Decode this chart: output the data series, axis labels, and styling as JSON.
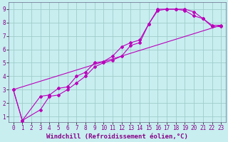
{
  "background_color": "#c8eef0",
  "grid_color": "#a0cccc",
  "line_color": "#bb00bb",
  "tick_color": "#880088",
  "xlabel": "Windchill (Refroidissement éolien,°C)",
  "xlim": [
    -0.5,
    23.5
  ],
  "ylim": [
    0.6,
    9.5
  ],
  "xtick_labels": [
    "0",
    "1",
    "2",
    "3",
    "4",
    "5",
    "6",
    "7",
    "8",
    "9",
    "10",
    "11",
    "12",
    "13",
    "14",
    "15",
    "16",
    "17",
    "18",
    "19",
    "20",
    "21",
    "22",
    "23"
  ],
  "xtick_vals": [
    0,
    1,
    2,
    3,
    4,
    5,
    6,
    7,
    8,
    9,
    10,
    11,
    12,
    13,
    14,
    15,
    16,
    17,
    18,
    19,
    20,
    21,
    22,
    23
  ],
  "yticks": [
    1,
    2,
    3,
    4,
    5,
    6,
    7,
    8,
    9
  ],
  "line1_x": [
    0,
    1,
    3,
    4,
    5,
    6,
    7,
    8,
    9,
    10,
    11,
    12,
    13,
    14,
    15,
    16,
    17,
    18,
    19,
    20,
    21,
    22,
    23
  ],
  "line1_y": [
    3.0,
    0.7,
    1.5,
    2.5,
    2.6,
    3.0,
    3.5,
    4.0,
    4.7,
    5.0,
    5.2,
    5.5,
    6.3,
    6.5,
    7.9,
    8.9,
    9.0,
    9.0,
    8.9,
    8.5,
    8.3,
    7.7,
    7.7
  ],
  "line2_x": [
    0,
    1,
    3,
    4,
    5,
    6,
    7,
    8,
    9,
    10,
    11,
    12,
    13,
    14,
    15,
    16,
    17,
    18,
    19,
    20,
    21,
    22,
    23
  ],
  "line2_y": [
    3.0,
    0.7,
    2.5,
    2.6,
    3.1,
    3.2,
    4.0,
    4.3,
    5.0,
    5.1,
    5.5,
    6.2,
    6.5,
    6.7,
    7.9,
    9.0,
    9.0,
    9.0,
    9.0,
    8.8,
    8.3,
    7.8,
    7.8
  ],
  "line3_x": [
    0,
    23
  ],
  "line3_y": [
    3.0,
    7.8
  ],
  "markersize": 2.0,
  "linewidth": 0.8,
  "xlabel_fontsize": 6.5,
  "tick_fontsize": 5.5
}
